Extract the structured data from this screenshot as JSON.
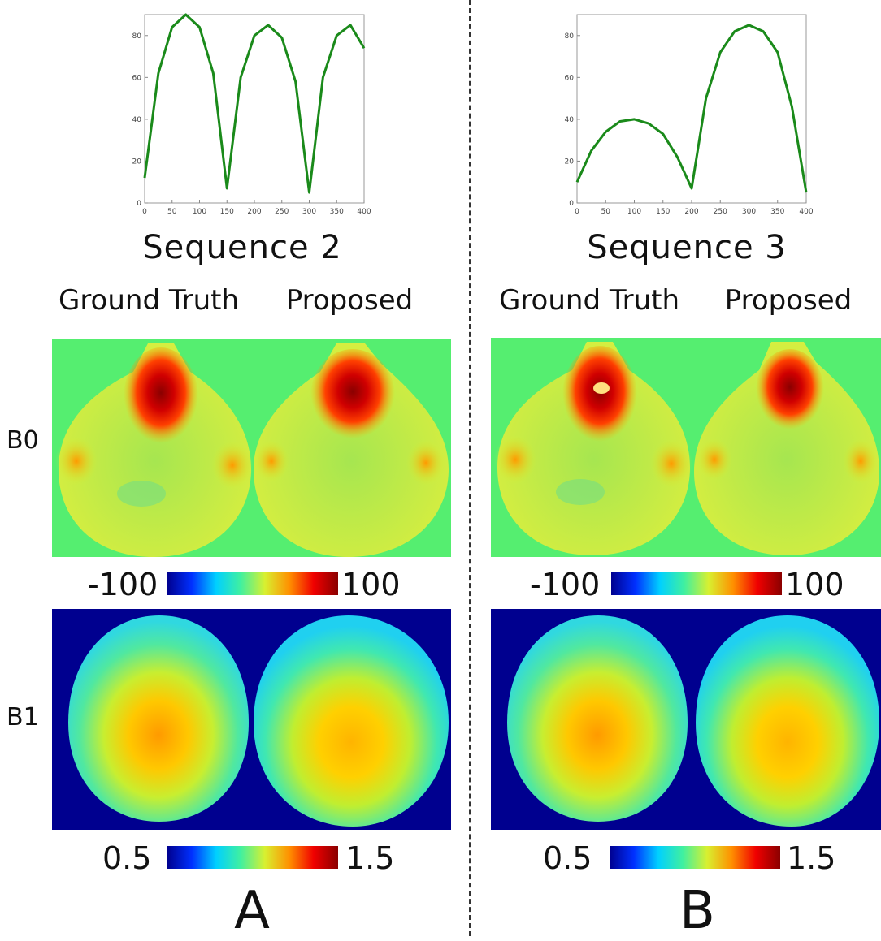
{
  "panels": [
    {
      "letter": "A",
      "sequence_title": "Sequence 2",
      "col_labels": [
        "Ground Truth",
        "Proposed"
      ],
      "row_labels": [
        "B0",
        "B1"
      ],
      "b0_colorbar": {
        "min": "-100",
        "max": "100"
      },
      "b1_colorbar": {
        "min": "0.5",
        "max": "1.5"
      }
    },
    {
      "letter": "B",
      "sequence_title": "Sequence 3",
      "col_labels": [
        "Ground Truth",
        "Proposed"
      ],
      "row_labels": [],
      "b0_colorbar": {
        "min": "-100",
        "max": "100"
      },
      "b1_colorbar": {
        "min": "0.5",
        "max": "1.5"
      }
    }
  ],
  "colors": {
    "line": "#1a8a1a",
    "b0_background": "#55ee70",
    "b1_background": "#00008f"
  },
  "chart_data": [
    {
      "type": "line",
      "title": "",
      "xlabel": "",
      "ylabel": "",
      "xlim": [
        0,
        400
      ],
      "ylim": [
        0,
        90
      ],
      "xticks": [
        0,
        50,
        100,
        150,
        200,
        250,
        300,
        350,
        400
      ],
      "yticks": [
        0,
        20,
        40,
        60,
        80
      ],
      "series": [
        {
          "x": [
            0,
            25,
            50,
            75,
            100,
            125,
            150,
            175,
            200,
            225,
            250,
            275,
            300,
            325,
            350,
            375,
            400
          ],
          "values": [
            12,
            62,
            84,
            90,
            84,
            62,
            7,
            60,
            80,
            85,
            79,
            58,
            5,
            60,
            80,
            85,
            74
          ]
        }
      ]
    },
    {
      "type": "line",
      "title": "",
      "xlabel": "",
      "ylabel": "",
      "xlim": [
        0,
        400
      ],
      "ylim": [
        0,
        90
      ],
      "xticks": [
        0,
        50,
        100,
        150,
        200,
        250,
        300,
        350,
        400
      ],
      "yticks": [
        0,
        20,
        40,
        60,
        80
      ],
      "series": [
        {
          "x": [
            0,
            25,
            50,
            75,
            100,
            125,
            150,
            175,
            200,
            225,
            250,
            275,
            300,
            325,
            350,
            375,
            400
          ],
          "values": [
            10,
            25,
            34,
            39,
            40,
            38,
            33,
            22,
            7,
            50,
            72,
            82,
            85,
            82,
            72,
            46,
            5
          ]
        }
      ]
    }
  ]
}
